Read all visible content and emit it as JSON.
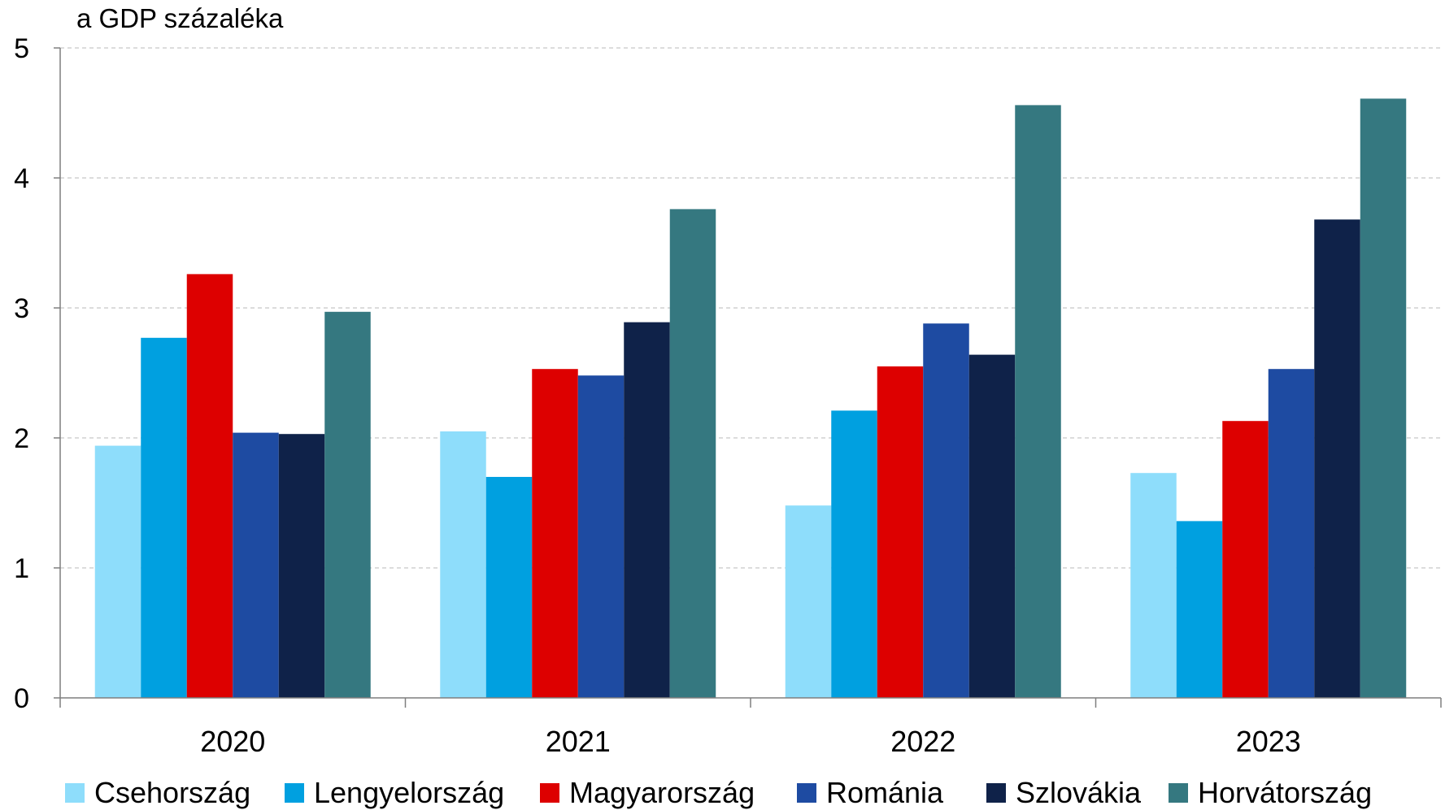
{
  "chart_data": {
    "type": "bar",
    "y_unit_label": "a GDP százaléka",
    "categories": [
      "2020",
      "2021",
      "2022",
      "2023"
    ],
    "ylim": [
      0,
      5
    ],
    "y_ticks": [
      "0",
      "1",
      "2",
      "3",
      "4",
      "5"
    ],
    "grid": "horizontal dashed",
    "legend_position": "bottom",
    "series": [
      {
        "name": "Csehország",
        "color": "#8EDDFB",
        "values": [
          1.94,
          2.05,
          1.48,
          1.73
        ]
      },
      {
        "name": "Lengyelország",
        "color": "#00A0E0",
        "values": [
          2.77,
          1.7,
          2.21,
          1.36
        ]
      },
      {
        "name": "Magyarország",
        "color": "#DD0000",
        "values": [
          3.26,
          2.53,
          2.55,
          2.13
        ]
      },
      {
        "name": "Románia",
        "color": "#1E4BA2",
        "values": [
          2.04,
          2.48,
          2.88,
          2.53
        ]
      },
      {
        "name": "Szlovákia",
        "color": "#0F2249",
        "values": [
          2.03,
          2.89,
          2.64,
          3.68
        ]
      },
      {
        "name": "Horvátország",
        "color": "#357880",
        "values": [
          2.97,
          3.76,
          4.56,
          4.61
        ]
      }
    ]
  }
}
